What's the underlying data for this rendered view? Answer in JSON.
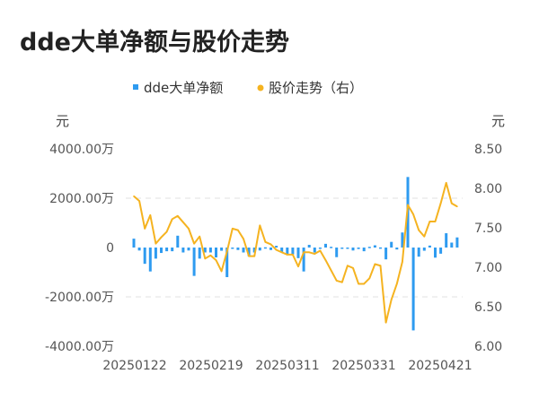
{
  "chart_data": {
    "type": "bar+line",
    "title": "dde大单净额与股价走势",
    "legend": {
      "placement": "top-center",
      "entries": [
        "dde大单净额",
        "股价走势（右）"
      ]
    },
    "y_left": {
      "unit_label": "元",
      "range": [
        -4000,
        4000
      ],
      "ticks": [
        "4000.00万",
        "2000.00万",
        "0",
        "-2000.00万",
        "-4000.00万"
      ],
      "tick_values": [
        4000,
        2000,
        0,
        -2000,
        -4000
      ]
    },
    "y_right": {
      "unit_label": "元",
      "range": [
        6.0,
        8.5
      ],
      "ticks": [
        "8.50",
        "8.00",
        "7.50",
        "7.00",
        "6.50",
        "6.00"
      ],
      "tick_values": [
        8.5,
        8.0,
        7.5,
        7.0,
        6.5,
        6.0
      ]
    },
    "x_ticks": [
      "20250122",
      "20250219",
      "20250311",
      "20250331",
      "20250421"
    ],
    "x_tick_index": [
      0,
      14,
      28,
      42,
      56
    ],
    "grid": true,
    "colors": {
      "bar": "#2E9BF0",
      "line": "#F5B320",
      "grid": "#e6e6e6"
    },
    "series": [
      {
        "name": "dde大单净额",
        "type": "bar",
        "unit": "万元",
        "values": [
          360,
          -120,
          -660,
          -970,
          -450,
          -220,
          -150,
          -150,
          480,
          -200,
          -120,
          -1150,
          -450,
          -200,
          -200,
          -400,
          -130,
          -1200,
          -30,
          -100,
          -200,
          -350,
          -200,
          -120,
          10,
          -100,
          70,
          -200,
          -300,
          -280,
          -430,
          -970,
          110,
          -200,
          -20,
          150,
          30,
          -390,
          -30,
          -20,
          -120,
          -60,
          -150,
          30,
          90,
          5,
          -480,
          230,
          -80,
          610,
          2860,
          -3360,
          -370,
          -130,
          80,
          -410,
          -250,
          580,
          200,
          410
        ]
      },
      {
        "name": "股价走势（右）",
        "type": "line",
        "unit": "元",
        "values": [
          7.9,
          7.84,
          7.49,
          7.66,
          7.3,
          7.38,
          7.45,
          7.61,
          7.65,
          7.57,
          7.49,
          7.3,
          7.39,
          7.11,
          7.15,
          7.09,
          6.95,
          7.2,
          7.49,
          7.47,
          7.36,
          7.14,
          7.14,
          7.53,
          7.32,
          7.29,
          7.22,
          7.19,
          7.16,
          7.16,
          7.01,
          7.19,
          7.19,
          7.17,
          7.21,
          7.09,
          6.96,
          6.83,
          6.81,
          7.02,
          6.99,
          6.79,
          6.79,
          6.86,
          7.04,
          7.02,
          6.3,
          6.59,
          6.79,
          7.07,
          7.79,
          7.67,
          7.47,
          7.39,
          7.58,
          7.58,
          7.81,
          8.07,
          7.81,
          7.77
        ]
      }
    ]
  }
}
